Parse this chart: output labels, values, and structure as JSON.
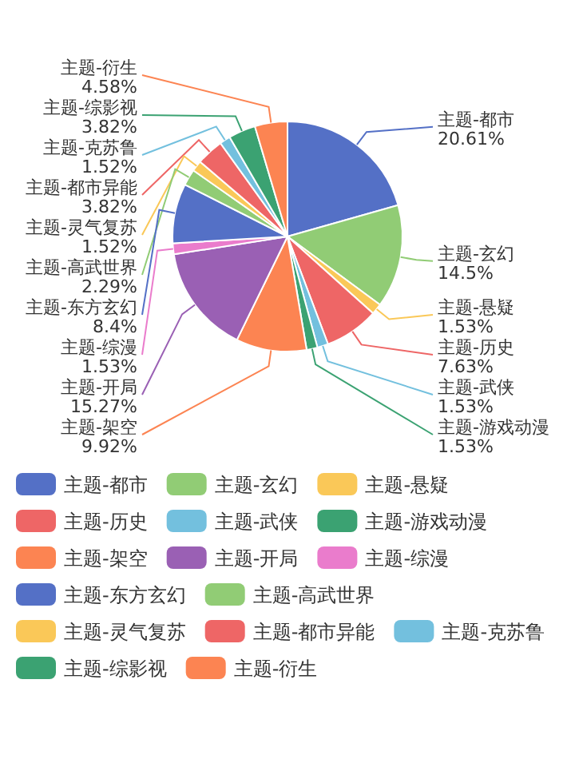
{
  "chart_data": {
    "type": "pie",
    "categories": [
      "主题-都市",
      "主题-玄幻",
      "主题-悬疑",
      "主题-历史",
      "主题-武侠",
      "主题-游戏动漫",
      "主题-架空",
      "主题-开局",
      "主题-综漫",
      "主题-东方玄幻",
      "主题-高武世界",
      "主题-灵气复苏",
      "主题-都市异能",
      "主题-克苏鲁",
      "主题-综影视",
      "主题-衍生"
    ],
    "values": [
      20.61,
      14.5,
      1.53,
      7.63,
      1.53,
      1.53,
      9.92,
      15.27,
      1.53,
      8.4,
      2.29,
      1.52,
      3.82,
      1.52,
      3.82,
      4.58
    ],
    "colors": [
      "#5470c6",
      "#91cc75",
      "#fac858",
      "#ee6666",
      "#73c0de",
      "#3ba272",
      "#fc8452",
      "#9a60b4",
      "#ea7ccc",
      "#5470c6",
      "#91cc75",
      "#fac858",
      "#ee6666",
      "#73c0de",
      "#3ba272",
      "#fc8452"
    ],
    "value_labels": [
      "20.61%",
      "14.5%",
      "1.53%",
      "7.63%",
      "1.53%",
      "1.53%",
      "9.92%",
      "15.27%",
      "1.53%",
      "8.4%",
      "2.29%",
      "1.52%",
      "3.82%",
      "1.52%",
      "3.82%",
      "4.58%"
    ],
    "legend": "bottom"
  }
}
